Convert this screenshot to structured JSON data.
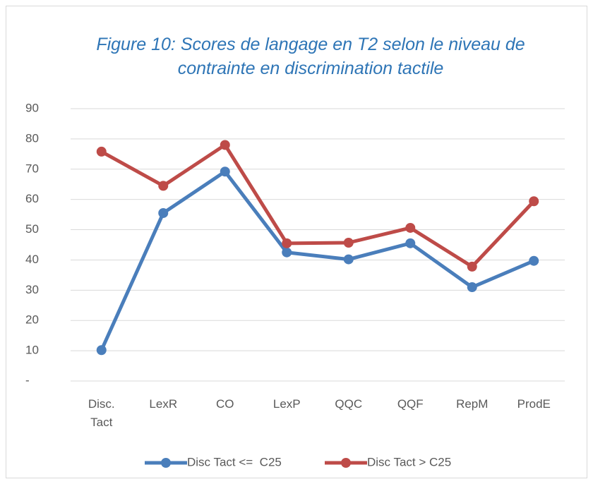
{
  "chart_data": {
    "type": "line",
    "title": "Figure 10: Scores de langage en T2 selon le niveau de contrainte en discrimination tactile",
    "categories": [
      "Disc. Tact",
      "LexR",
      "CO",
      "LexP",
      "QQC",
      "QQF",
      "RepM",
      "ProdE"
    ],
    "series": [
      {
        "name": "Disc Tact <=  C25",
        "color": "#4a7ebb",
        "values": [
          10.2,
          55.5,
          69.2,
          42.5,
          40.2,
          45.5,
          31,
          39.7
        ]
      },
      {
        "name": "Disc Tact > C25",
        "color": "#be4b48",
        "values": [
          75.8,
          64.5,
          78,
          45.5,
          45.7,
          50.6,
          37.8,
          59.4
        ]
      }
    ],
    "ylim": [
      0,
      90
    ],
    "yticks": [
      {
        "value": 0,
        "label": "-"
      },
      10,
      20,
      30,
      40,
      50,
      60,
      70,
      80,
      90
    ],
    "grid": true,
    "legend": "bottom"
  }
}
